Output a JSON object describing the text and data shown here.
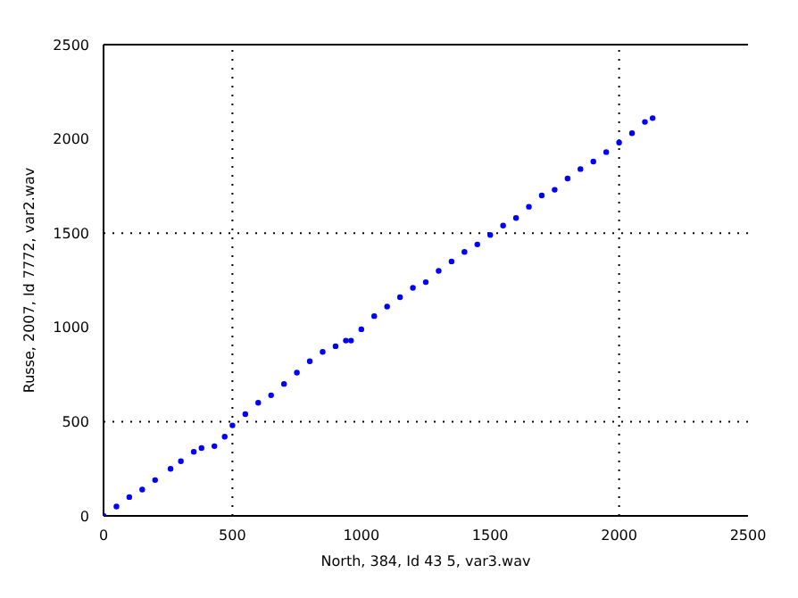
{
  "chart_data": {
    "type": "scatter",
    "xlabel": "North, 384, Id 43 5, var3.wav",
    "ylabel": "Russe, 2007, Id 7772, var2.wav",
    "x": [
      0,
      50,
      100,
      150,
      200,
      260,
      300,
      350,
      380,
      430,
      470,
      500,
      550,
      600,
      650,
      700,
      750,
      800,
      850,
      900,
      940,
      960,
      1000,
      1050,
      1100,
      1150,
      1200,
      1250,
      1300,
      1350,
      1400,
      1450,
      1500,
      1550,
      1600,
      1650,
      1700,
      1750,
      1800,
      1850,
      1900,
      1950,
      2000,
      2050,
      2100,
      2130
    ],
    "series": [
      {
        "color": "#0000ff",
        "values": [
          0,
          50,
          100,
          140,
          190,
          250,
          290,
          340,
          360,
          370,
          420,
          480,
          540,
          600,
          640,
          700,
          760,
          820,
          870,
          900,
          930,
          930,
          990,
          1060,
          1110,
          1160,
          1210,
          1240,
          1300,
          1350,
          1400,
          1440,
          1490,
          1540,
          1580,
          1640,
          1700,
          1730,
          1790,
          1840,
          1880,
          1930,
          1980,
          2030,
          2090,
          2110
        ]
      }
    ],
    "xlim": [
      0,
      2500
    ],
    "ylim": [
      0,
      2500
    ],
    "xticks": [
      0,
      500,
      1000,
      1500,
      2000,
      2500
    ],
    "yticks": [
      0,
      500,
      1000,
      1500,
      2000,
      2500
    ],
    "marker": "circle",
    "legend": false,
    "ref_lines": [
      {
        "axis": "x",
        "value": 500,
        "color": "#000000",
        "line_style": "dotted"
      },
      {
        "axis": "x",
        "value": 2000,
        "color": "#000000",
        "line_style": "dotted"
      },
      {
        "axis": "y",
        "value": 500,
        "color": "#000000",
        "line_style": "dotted"
      },
      {
        "axis": "y",
        "value": 1500,
        "color": "#000000",
        "line_style": "dotted"
      }
    ]
  }
}
